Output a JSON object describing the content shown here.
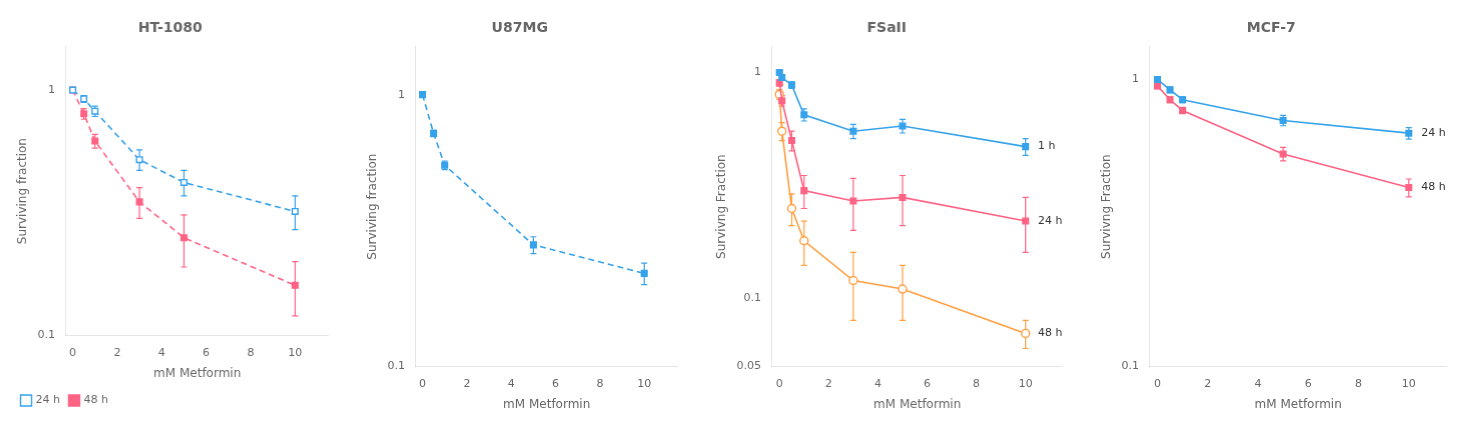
{
  "chart_data": [
    {
      "type": "line",
      "title": "HT-1080",
      "xlabel": "mM Metformin",
      "ylabel": "Surviving fraction",
      "log": "y",
      "xlim": [
        -0.3,
        11.5
      ],
      "ylim": [
        0.1,
        1.5
      ],
      "xticks": [
        0,
        2,
        4,
        6,
        8,
        10
      ],
      "yticks": [
        0.1,
        1
      ],
      "grid": false,
      "legend": "lower left",
      "series": [
        {
          "name": "24 h",
          "x": [
            0,
            0.5,
            1,
            3,
            5,
            10
          ],
          "values": [
            1.0,
            0.92,
            0.82,
            0.52,
            0.42,
            0.32
          ],
          "yerr": [
            0.02,
            0.03,
            0.04,
            0.05,
            0.05,
            0.05
          ],
          "marker": "open square",
          "line_style": "dashed"
        },
        {
          "name": "48 h",
          "x": [
            0,
            0.5,
            1,
            3,
            5,
            10
          ],
          "values": [
            1.0,
            0.8,
            0.62,
            0.35,
            0.25,
            0.16
          ],
          "yerr": [
            0.02,
            0.04,
            0.04,
            0.05,
            0.06,
            0.04
          ],
          "marker": "square",
          "line_style": "dashed"
        }
      ]
    },
    {
      "type": "line",
      "title": "U87MG",
      "xlabel": "mM Metformin",
      "ylabel": "Surviving fraction",
      "log": "y",
      "xlim": [
        -0.3,
        11.5
      ],
      "ylim": [
        0.1,
        1.5
      ],
      "xticks": [
        0,
        2,
        4,
        6,
        8,
        10
      ],
      "yticks": [
        0.1,
        1
      ],
      "grid": false,
      "series": [
        {
          "x": [
            0,
            0.5,
            1,
            5,
            10
          ],
          "values": [
            1.0,
            0.72,
            0.55,
            0.28,
            0.22
          ],
          "yerr": [
            0.02,
            0.02,
            0.02,
            0.02,
            0.02
          ],
          "marker": "square",
          "line_style": "dashed"
        }
      ]
    },
    {
      "type": "line",
      "title": "FSaII",
      "xlabel": "mM Metformin",
      "ylabel": "Survivng Fraction",
      "log": "y",
      "xlim": [
        -0.3,
        11.5
      ],
      "ylim": [
        0.05,
        1.3
      ],
      "xticks": [
        0,
        2,
        4,
        6,
        8,
        10
      ],
      "yticks": [
        0.05,
        0.1,
        1
      ],
      "grid": false,
      "series": [
        {
          "x": [
            0,
            0.1,
            0.5,
            1,
            3,
            5,
            10
          ],
          "values": [
            1.0,
            0.95,
            0.88,
            0.65,
            0.55,
            0.58,
            0.47
          ],
          "yerr": [
            0.02,
            0.02,
            0.03,
            0.04,
            0.04,
            0.04,
            0.04
          ],
          "marker": "square",
          "line_style": "solid"
        },
        {
          "x": [
            0,
            0.1,
            0.5,
            1,
            3,
            5,
            10
          ],
          "values": [
            0.9,
            0.75,
            0.5,
            0.3,
            0.27,
            0.28,
            0.22
          ],
          "yerr": [
            0.03,
            0.04,
            0.05,
            0.05,
            0.07,
            0.07,
            0.06
          ],
          "marker": "square",
          "line_style": "solid"
        },
        {
          "x": [
            0,
            0.1,
            0.5,
            1,
            3,
            5,
            10
          ],
          "values": [
            0.8,
            0.55,
            0.25,
            0.18,
            0.12,
            0.11,
            0.07
          ],
          "yerr": [
            0.04,
            0.05,
            0.04,
            0.04,
            0.04,
            0.03,
            0.01
          ],
          "marker": "open circle",
          "line_style": "solid"
        }
      ],
      "annotations": [
        {
          "text": "1 h",
          "x": 10.5,
          "y": 0.47
        },
        {
          "text": "24 h",
          "x": 10.5,
          "y": 0.22
        },
        {
          "text": "48 h",
          "x": 10.5,
          "y": 0.07
        }
      ]
    },
    {
      "type": "line",
      "title": "MCF-7",
      "xlabel": "mM Metformin",
      "ylabel": "Survivng Fraction",
      "log": "y",
      "xlim": [
        -0.3,
        11.5
      ],
      "ylim": [
        0.1,
        1.3
      ],
      "xticks": [
        0,
        2,
        4,
        6,
        8,
        10
      ],
      "yticks": [
        0.1,
        1
      ],
      "grid": false,
      "series": [
        {
          "x": [
            0,
            0.5,
            1,
            5,
            10
          ],
          "values": [
            1.0,
            0.92,
            0.85,
            0.72,
            0.65
          ],
          "yerr": [
            0.02,
            0.02,
            0.02,
            0.03,
            0.03
          ],
          "marker": "square",
          "line_style": "solid"
        },
        {
          "x": [
            0,
            0.5,
            1,
            5,
            10
          ],
          "values": [
            0.95,
            0.85,
            0.78,
            0.55,
            0.42
          ],
          "yerr": [
            0.02,
            0.02,
            0.02,
            0.03,
            0.03
          ],
          "marker": "square",
          "line_style": "solid"
        }
      ],
      "annotations": [
        {
          "text": "24 h",
          "x": 10.5,
          "y": 0.65
        },
        {
          "text": "48 h",
          "x": 10.5,
          "y": 0.42
        }
      ]
    }
  ]
}
